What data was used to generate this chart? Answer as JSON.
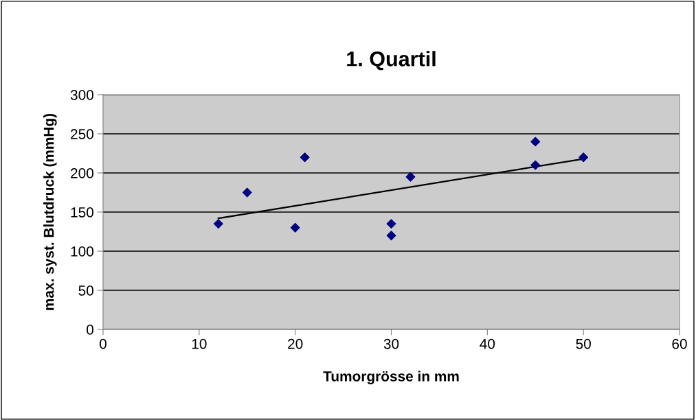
{
  "chart_data": {
    "type": "scatter",
    "title": "1. Quartil",
    "xlabel": "Tumorgrösse in mm",
    "ylabel": "max. syst. Blutdruck (mmHg)",
    "xlim": [
      0,
      60
    ],
    "xticks": [
      0,
      10,
      20,
      30,
      40,
      50,
      60
    ],
    "ylim": [
      0,
      300
    ],
    "yticks": [
      0,
      50,
      100,
      150,
      200,
      250,
      300
    ],
    "grid": "y",
    "legend": false,
    "marker": "diamond",
    "series": [
      {
        "color": "#000080",
        "x": [
          12,
          15,
          20,
          21,
          30,
          30,
          32,
          45,
          45,
          50
        ],
        "values": [
          135,
          175,
          130,
          220,
          135,
          120,
          195,
          240,
          210,
          220
        ]
      },
      {
        "type": "line",
        "color": "#000000",
        "marker": "none",
        "line_style": "solid",
        "x": [
          12,
          50
        ],
        "values": [
          142,
          218
        ]
      }
    ]
  }
}
